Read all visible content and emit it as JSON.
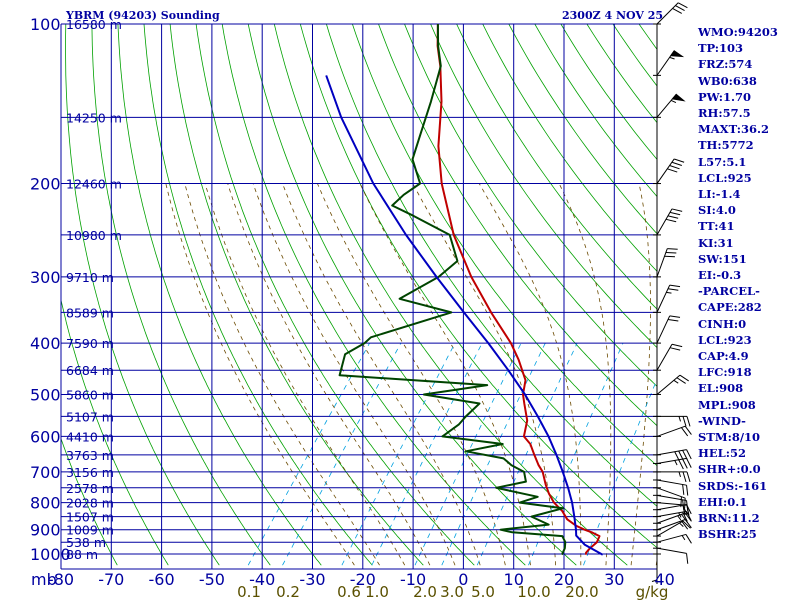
{
  "header": {
    "title": "YBRM (94203) Sounding",
    "datetime": "2300Z  4 NOV 25"
  },
  "indices": [
    "WMO:94203",
    "TP:103",
    "FRZ:574",
    "WB0:638",
    "PW:1.70",
    "RH:57.5",
    "MAXT:36.2",
    "TH:5772",
    "L57:5.1",
    "LCL:925",
    "LI:-1.4",
    "SI:4.0",
    "TT:41",
    "KI:31",
    "SW:151",
    "EI:-0.3",
    "-PARCEL-",
    "CAPE:282",
    "CINH:0",
    "LCL:923",
    "CAP:4.9",
    "LFC:918",
    "EL:908",
    "MPL:908",
    "-WIND-",
    "STM:8/10",
    "HEL:52",
    "SHR+:0.0",
    "SRDS:-161",
    "EHI:0.1",
    "BRN:11.2",
    "BSHR:25"
  ],
  "chart_data": {
    "type": "line",
    "subtype": "skew-T log-P sounding",
    "y_scale": "log",
    "pressure_ticks": [
      100,
      200,
      300,
      400,
      500,
      600,
      700,
      800,
      900,
      1000
    ],
    "pressure_unit": "mb",
    "temperature_ticks": [
      -80,
      -70,
      -60,
      -50,
      -40,
      -30,
      -20,
      -10,
      0,
      10,
      20,
      30,
      40
    ],
    "mixing_ratio_labels": [
      "0.1",
      "0.2",
      "0.6",
      "1.0",
      "2.0",
      "3.0",
      "5.0",
      "10.0",
      "20.0",
      "g/kg"
    ],
    "heights": [
      {
        "p": 100,
        "label": "16580 m"
      },
      {
        "p": 150,
        "label": "14250 m"
      },
      {
        "p": 200,
        "label": "12460 m"
      },
      {
        "p": 250,
        "label": "10980 m"
      },
      {
        "p": 300,
        "label": "9710 m"
      },
      {
        "p": 350,
        "label": "8589 m"
      },
      {
        "p": 400,
        "label": "7590 m"
      },
      {
        "p": 450,
        "label": "6684 m"
      },
      {
        "p": 500,
        "label": "5860 m"
      },
      {
        "p": 550,
        "label": "5107 m"
      },
      {
        "p": 600,
        "label": "4410 m"
      },
      {
        "p": 650,
        "label": "3763 m"
      },
      {
        "p": 700,
        "label": "3156 m"
      },
      {
        "p": 750,
        "label": "2578 m"
      },
      {
        "p": 800,
        "label": "2028 m"
      },
      {
        "p": 850,
        "label": "1507 m"
      },
      {
        "p": 900,
        "label": "1009 m"
      },
      {
        "p": 950,
        "label": "538 m"
      },
      {
        "p": 1000,
        "label": "88 m"
      }
    ],
    "series": [
      {
        "name": "temperature",
        "color": "#c00000",
        "points": [
          [
            1003,
            24.5
          ],
          [
            995,
            24.2
          ],
          [
            975,
            24.3
          ],
          [
            950,
            24.8
          ],
          [
            925,
            24.4
          ],
          [
            910,
            22.3
          ],
          [
            900,
            20.5
          ],
          [
            885,
            18.3
          ],
          [
            860,
            15.5
          ],
          [
            830,
            13.3
          ],
          [
            800,
            10.4
          ],
          [
            770,
            8.1
          ],
          [
            740,
            6.1
          ],
          [
            700,
            3.6
          ],
          [
            680,
            1.8
          ],
          [
            650,
            -0.6
          ],
          [
            620,
            -3.0
          ],
          [
            600,
            -5.4
          ],
          [
            560,
            -7.1
          ],
          [
            520,
            -10.2
          ],
          [
            500,
            -11.8
          ],
          [
            470,
            -13.4
          ],
          [
            430,
            -17.8
          ],
          [
            400,
            -21.8
          ],
          [
            350,
            -30.3
          ],
          [
            300,
            -39.5
          ],
          [
            250,
            -49.2
          ],
          [
            200,
            -59.2
          ],
          [
            170,
            -65.4
          ],
          [
            140,
            -71.4
          ],
          [
            120,
            -76.9
          ],
          [
            110,
            -80.4
          ],
          [
            100,
            -83.6
          ]
        ]
      },
      {
        "name": "dewpoint",
        "color": "#004400",
        "points": [
          [
            1003,
            19.7
          ],
          [
            975,
            19.3
          ],
          [
            950,
            18.5
          ],
          [
            925,
            17.0
          ],
          [
            910,
            6.5
          ],
          [
            900,
            3.8
          ],
          [
            880,
            12.6
          ],
          [
            850,
            8.0
          ],
          [
            820,
            13.0
          ],
          [
            800,
            3.6
          ],
          [
            780,
            6.3
          ],
          [
            750,
            -3.3
          ],
          [
            730,
            1.7
          ],
          [
            700,
            -0.1
          ],
          [
            680,
            -3.6
          ],
          [
            660,
            -6.2
          ],
          [
            640,
            -14.7
          ],
          [
            620,
            -8.5
          ],
          [
            600,
            -21.6
          ],
          [
            570,
            -20.1
          ],
          [
            550,
            -19.9
          ],
          [
            520,
            -19.1
          ],
          [
            500,
            -31.5
          ],
          [
            480,
            -20.3
          ],
          [
            460,
            -51.1
          ],
          [
            420,
            -53.1
          ],
          [
            400,
            -50.9
          ],
          [
            390,
            -50.5
          ],
          [
            350,
            -38.2
          ],
          [
            330,
            -50.5
          ],
          [
            300,
            -46.0
          ],
          [
            280,
            -44.6
          ],
          [
            250,
            -50.0
          ],
          [
            230,
            -60.1
          ],
          [
            220,
            -65.8
          ],
          [
            210,
            -65.1
          ],
          [
            200,
            -63.5
          ],
          [
            180,
            -68.6
          ],
          [
            160,
            -70.9
          ],
          [
            140,
            -73.5
          ],
          [
            120,
            -76.8
          ],
          [
            110,
            -80.3
          ],
          [
            100,
            -83.6
          ]
        ]
      },
      {
        "name": "parcel",
        "color": "#0000c0",
        "points": [
          [
            1003,
            27.8
          ],
          [
            960,
            22.7
          ],
          [
            923,
            19.7
          ],
          [
            900,
            18.8
          ],
          [
            850,
            16.5
          ],
          [
            800,
            14.0
          ],
          [
            750,
            11.0
          ],
          [
            700,
            7.6
          ],
          [
            650,
            3.8
          ],
          [
            600,
            -0.5
          ],
          [
            550,
            -5.6
          ],
          [
            500,
            -11.4
          ],
          [
            450,
            -18.3
          ],
          [
            400,
            -26.3
          ],
          [
            350,
            -35.7
          ],
          [
            300,
            -46.4
          ],
          [
            250,
            -58.7
          ],
          [
            200,
            -72.8
          ],
          [
            150,
            -89.0
          ],
          [
            125,
            -98.2
          ]
        ]
      }
    ],
    "wind_barbs": [
      {
        "p": 1000,
        "dir": 180,
        "kt": 5
      },
      {
        "p": 975,
        "dir": 100,
        "kt": 10
      },
      {
        "p": 950,
        "dir": 75,
        "kt": 15
      },
      {
        "p": 925,
        "dir": 60,
        "kt": 15
      },
      {
        "p": 900,
        "dir": 70,
        "kt": 20
      },
      {
        "p": 875,
        "dir": 70,
        "kt": 25
      },
      {
        "p": 850,
        "dir": 80,
        "kt": 25
      },
      {
        "p": 825,
        "dir": 80,
        "kt": 20
      },
      {
        "p": 800,
        "dir": 95,
        "kt": 20
      },
      {
        "p": 775,
        "dir": 100,
        "kt": 20
      },
      {
        "p": 750,
        "dir": 110,
        "kt": 20
      },
      {
        "p": 725,
        "dir": 100,
        "kt": 20
      },
      {
        "p": 700,
        "dir": 90,
        "kt": 25
      },
      {
        "p": 675,
        "dir": 80,
        "kt": 35
      },
      {
        "p": 650,
        "dir": 80,
        "kt": 40
      },
      {
        "p": 600,
        "dir": 70,
        "kt": 20
      },
      {
        "p": 550,
        "dir": 90,
        "kt": 25
      },
      {
        "p": 500,
        "dir": 50,
        "kt": 25
      },
      {
        "p": 450,
        "dir": 30,
        "kt": 20
      },
      {
        "p": 400,
        "dir": 25,
        "kt": 20
      },
      {
        "p": 350,
        "dir": 25,
        "kt": 25
      },
      {
        "p": 300,
        "dir": 20,
        "kt": 30
      },
      {
        "p": 250,
        "dir": 30,
        "kt": 40
      },
      {
        "p": 200,
        "dir": 35,
        "kt": 40
      },
      {
        "p": 150,
        "dir": 40,
        "kt": 55
      },
      {
        "p": 125,
        "dir": 35,
        "kt": 55
      },
      {
        "p": 100,
        "dir": 45,
        "kt": 30
      }
    ],
    "colors": {
      "isobars": "#0000a0",
      "isotherms": "#0000a0",
      "dry_adiabats": "#00a000",
      "moist_adiabats": "#6b4a00",
      "mixing_ratio": "#00a0e0",
      "axis_text": "#0000a0",
      "mixing_text": "#5a5000"
    },
    "grid": true
  }
}
